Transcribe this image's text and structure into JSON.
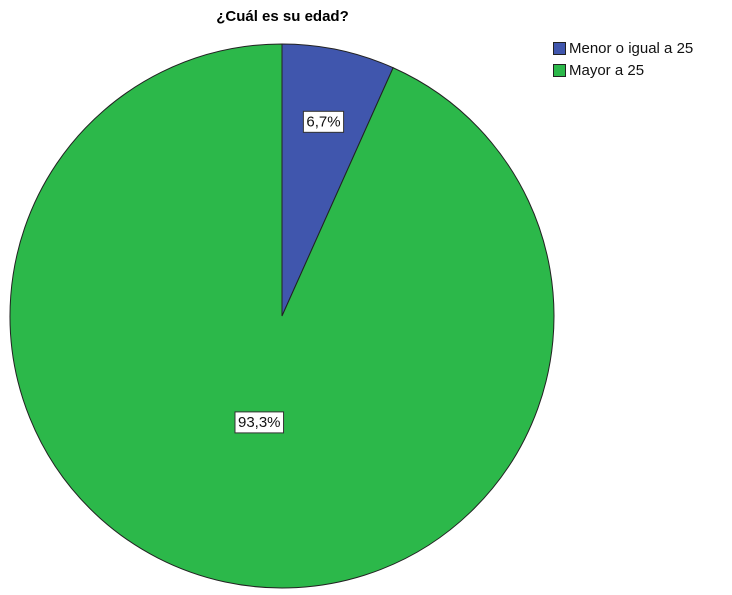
{
  "chart_data": {
    "type": "pie",
    "title": "¿Cuál es su edad?",
    "categories": [
      "Menor o igual a 25",
      "Mayor a 25"
    ],
    "values": [
      6.7,
      93.3
    ],
    "value_labels": [
      "6,7%",
      "93,3%"
    ],
    "colors": [
      "#4056ad",
      "#2cb84a"
    ],
    "start_angle": "12 o'clock, clockwise",
    "legend_position": "top-right"
  }
}
